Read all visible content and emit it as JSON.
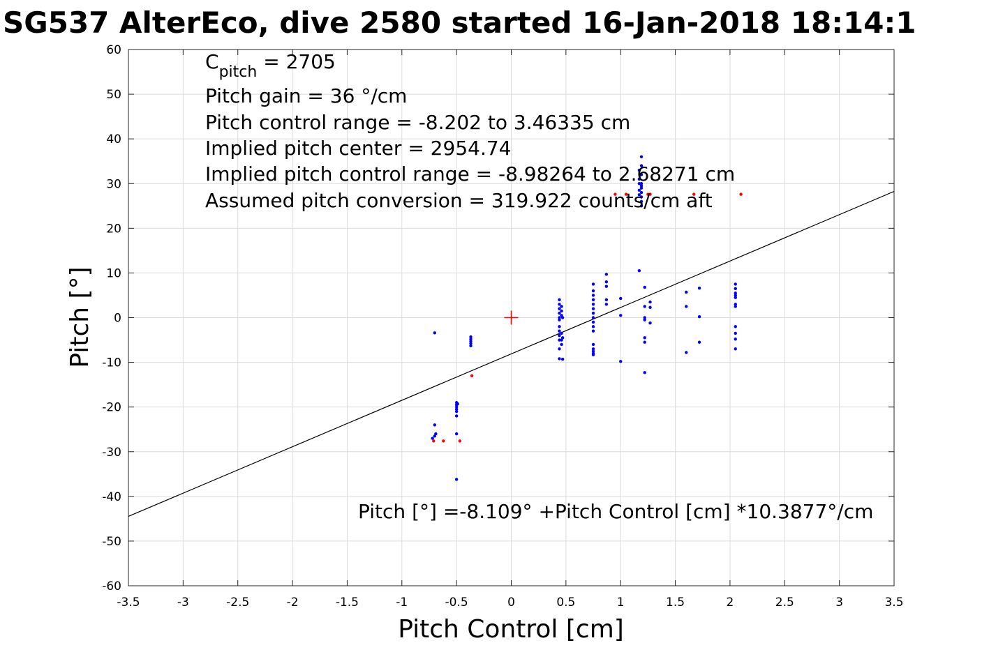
{
  "chart_data": {
    "type": "scatter",
    "title": "SG537 AlterEco, dive 2580 started 16-Jan-2018 18:14:1",
    "xlabel": "Pitch Control [cm]",
    "ylabel": "Pitch [°]",
    "xlim": [
      -3.5,
      3.5
    ],
    "ylim": [
      -60,
      60
    ],
    "xticks": [
      -3.5,
      -3,
      -2.5,
      -2,
      -1.5,
      -1,
      -0.5,
      0,
      0.5,
      1,
      1.5,
      2,
      2.5,
      3,
      3.5
    ],
    "yticks": [
      -60,
      -50,
      -40,
      -30,
      -20,
      -10,
      0,
      10,
      20,
      30,
      40,
      50,
      60
    ],
    "xtick_labels": [
      "-3.5",
      "-3",
      "-2.5",
      "-2",
      "-1.5",
      "-1",
      "-0.5",
      "0",
      "0.5",
      "1",
      "1.5",
      "2",
      "2.5",
      "3",
      "3.5"
    ],
    "ytick_labels": [
      "-60",
      "-50",
      "-40",
      "-30",
      "-20",
      "-10",
      "0",
      "10",
      "20",
      "30",
      "40",
      "50",
      "60"
    ],
    "grid": true,
    "annotations": {
      "c_pitch_base": "C",
      "c_pitch_sub": "pitch",
      "c_pitch_rest": " = 2705",
      "lines": [
        "Pitch gain = 36 °/cm",
        "Pitch control range = -8.202 to 3.46335 cm",
        "Implied pitch center = 2954.74",
        "Implied pitch control range = -8.98264 to 2.68271 cm",
        "Assumed pitch conversion = 319.922 counts/cm aft"
      ],
      "fit_equation": "Pitch [°] =-8.109° +Pitch Control [cm] *10.3877°/cm"
    },
    "fit_line": {
      "intercept": -8.109,
      "slope": 10.3877
    },
    "center_marker": {
      "x": 0,
      "y": 0,
      "color": "#ff0000"
    },
    "colors": {
      "included": "#0000ff",
      "excluded": "#ff0000",
      "fit": "#000000"
    },
    "series": [
      {
        "color": "#0000ff",
        "points": [
          [
            -0.7,
            -3.4
          ],
          [
            -0.72,
            -27
          ],
          [
            -0.7,
            -26.5
          ],
          [
            -0.7,
            -24
          ],
          [
            -0.69,
            -26
          ],
          [
            -0.5,
            -19
          ],
          [
            -0.5,
            -19.5
          ],
          [
            -0.5,
            -20
          ],
          [
            -0.5,
            -20.5
          ],
          [
            -0.5,
            -21
          ],
          [
            -0.5,
            -22
          ],
          [
            -0.5,
            -26
          ],
          [
            -0.5,
            -36.2
          ],
          [
            -0.49,
            -19.3
          ],
          [
            -0.37,
            -4.3
          ],
          [
            -0.37,
            -4.8
          ],
          [
            -0.37,
            -5.3
          ],
          [
            -0.37,
            -5.8
          ],
          [
            -0.37,
            -6.3
          ],
          [
            0.44,
            4
          ],
          [
            0.44,
            3
          ],
          [
            0.44,
            2
          ],
          [
            0.44,
            1
          ],
          [
            0.44,
            0
          ],
          [
            0.44,
            -0.5
          ],
          [
            0.44,
            -2
          ],
          [
            0.44,
            -3
          ],
          [
            0.44,
            -4
          ],
          [
            0.44,
            -5
          ],
          [
            0.44,
            -7
          ],
          [
            0.44,
            -9.2
          ],
          [
            0.46,
            2.5
          ],
          [
            0.46,
            1.5
          ],
          [
            0.46,
            0.5
          ],
          [
            0.46,
            -3.5
          ],
          [
            0.46,
            -5
          ],
          [
            0.46,
            -6
          ],
          [
            0.47,
            -9.3
          ],
          [
            0.47,
            0
          ],
          [
            0.47,
            -4.5
          ],
          [
            0.75,
            7.5
          ],
          [
            0.75,
            6
          ],
          [
            0.75,
            5
          ],
          [
            0.75,
            4
          ],
          [
            0.75,
            3
          ],
          [
            0.75,
            2
          ],
          [
            0.75,
            1
          ],
          [
            0.75,
            0
          ],
          [
            0.75,
            -1
          ],
          [
            0.75,
            -2
          ],
          [
            0.75,
            -3
          ],
          [
            0.75,
            -6
          ],
          [
            0.75,
            -7
          ],
          [
            0.75,
            -7.5
          ],
          [
            0.75,
            -8
          ],
          [
            0.75,
            -8.3
          ],
          [
            0.87,
            9.7
          ],
          [
            0.87,
            8
          ],
          [
            0.87,
            7
          ],
          [
            0.87,
            4
          ],
          [
            0.87,
            3
          ],
          [
            1.0,
            4.3
          ],
          [
            1.0,
            0.5
          ],
          [
            1.0,
            -9.8
          ],
          [
            1.17,
            10.5
          ],
          [
            1.19,
            36
          ],
          [
            1.19,
            34
          ],
          [
            1.19,
            32
          ],
          [
            1.19,
            30
          ],
          [
            1.19,
            29.5
          ],
          [
            1.19,
            29
          ],
          [
            1.19,
            28
          ],
          [
            1.19,
            27
          ],
          [
            1.19,
            26
          ],
          [
            1.19,
            25
          ],
          [
            1.17,
            33
          ],
          [
            1.17,
            31
          ],
          [
            1.17,
            30
          ],
          [
            1.17,
            28.5
          ],
          [
            1.17,
            27.5
          ],
          [
            1.22,
            6.8
          ],
          [
            1.22,
            2.5
          ],
          [
            1.22,
            0
          ],
          [
            1.22,
            -0.5
          ],
          [
            1.22,
            -4.5
          ],
          [
            1.22,
            -5.5
          ],
          [
            1.22,
            -12.3
          ],
          [
            1.27,
            3.5
          ],
          [
            1.27,
            2.3
          ],
          [
            1.27,
            -1.2
          ],
          [
            1.6,
            5.7
          ],
          [
            1.6,
            2.5
          ],
          [
            1.6,
            -7.8
          ],
          [
            1.72,
            6.6
          ],
          [
            1.72,
            0.2
          ],
          [
            1.72,
            -5.5
          ],
          [
            2.05,
            7.5
          ],
          [
            2.05,
            6.5
          ],
          [
            2.05,
            5.5
          ],
          [
            2.05,
            5
          ],
          [
            2.05,
            4.5
          ],
          [
            2.05,
            3
          ],
          [
            2.05,
            2.5
          ],
          [
            2.05,
            -2
          ],
          [
            2.05,
            -3.5
          ],
          [
            2.05,
            -4.8
          ],
          [
            2.05,
            -7
          ]
        ]
      },
      {
        "color": "#ff0000",
        "points": [
          [
            -0.71,
            -27.6
          ],
          [
            -0.62,
            -27.6
          ],
          [
            -0.47,
            -27.6
          ],
          [
            -0.36,
            -13
          ],
          [
            0.95,
            27.6
          ],
          [
            1.05,
            27.6
          ],
          [
            1.25,
            27.6
          ],
          [
            1.27,
            27.6
          ],
          [
            1.67,
            27.6
          ],
          [
            2.1,
            27.6
          ]
        ]
      }
    ]
  }
}
